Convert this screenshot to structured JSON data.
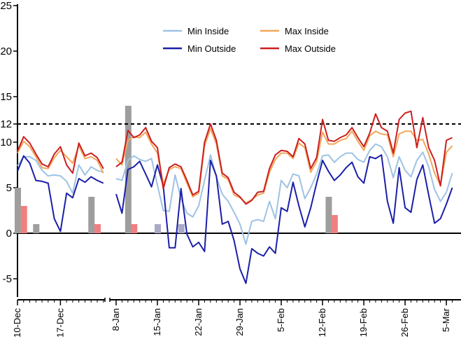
{
  "chart_data": {
    "type": "line",
    "yaxis": {
      "min": -7,
      "max": 25,
      "ticks": [
        -5,
        0,
        5,
        10,
        12,
        15,
        20,
        25
      ]
    },
    "reference_line": 12,
    "x_tick_labels": [
      "10-Dec",
      "17-Dec",
      "8-Jan",
      "15-Jan",
      "22-Jan",
      "29-Jan",
      "5-Feb",
      "12-Feb",
      "19-Feb",
      "26-Feb",
      "5-Mar"
    ],
    "legend": [
      "Min Inside",
      "Max Inside",
      "Min Outside",
      "Max Outside"
    ],
    "segments": [
      {
        "dates": [
          "10-Dec",
          "11-Dec",
          "12-Dec",
          "13-Dec",
          "14-Dec",
          "15-Dec",
          "16-Dec",
          "17-Dec",
          "18-Dec",
          "19-Dec",
          "20-Dec",
          "21-Dec",
          "22-Dec",
          "23-Dec",
          "24-Dec"
        ],
        "series": [
          {
            "name": "Min Inside",
            "values": [
              7.4,
              8.4,
              8.4,
              8.0,
              6.9,
              6.3,
              6.4,
              6.3,
              5.7,
              4.4,
              7.5,
              6.4,
              7.3,
              6.9,
              6.7
            ]
          },
          {
            "name": "Max Inside",
            "values": [
              8.8,
              10.1,
              9.5,
              8.4,
              7.2,
              7.1,
              8.3,
              9.1,
              8.4,
              7.7,
              9.6,
              8.2,
              8.4,
              8.0,
              6.6
            ]
          },
          {
            "name": "Min Outside",
            "values": [
              6.8,
              8.5,
              7.7,
              5.8,
              5.7,
              5.5,
              1.6,
              0.2,
              4.4,
              3.9,
              6.0,
              5.6,
              6.2,
              5.8,
              5.5
            ]
          },
          {
            "name": "Max Outside",
            "values": [
              9.0,
              10.6,
              9.9,
              8.7,
              7.6,
              7.3,
              8.7,
              9.5,
              7.5,
              6.6,
              9.9,
              8.5,
              8.8,
              8.3,
              7.1
            ]
          }
        ]
      },
      {
        "dates": [
          "8-Jan",
          "9-Jan",
          "10-Jan",
          "11-Jan",
          "12-Jan",
          "13-Jan",
          "14-Jan",
          "15-Jan",
          "16-Jan",
          "17-Jan",
          "18-Jan",
          "19-Jan",
          "20-Jan",
          "21-Jan",
          "22-Jan",
          "23-Jan",
          "24-Jan",
          "25-Jan",
          "26-Jan",
          "27-Jan",
          "28-Jan",
          "29-Jan",
          "30-Jan",
          "31-Jan",
          "1-Feb",
          "2-Feb",
          "3-Feb",
          "4-Feb",
          "5-Feb",
          "6-Feb",
          "7-Feb",
          "8-Feb",
          "9-Feb",
          "10-Feb",
          "11-Feb",
          "12-Feb",
          "13-Feb",
          "14-Feb",
          "15-Feb",
          "16-Feb",
          "17-Feb",
          "18-Feb",
          "19-Feb",
          "20-Feb",
          "21-Feb",
          "22-Feb",
          "23-Feb",
          "24-Feb",
          "25-Feb",
          "26-Feb",
          "27-Feb",
          "28-Feb",
          "1-Mar",
          "2-Mar",
          "3-Mar",
          "4-Mar",
          "5-Mar",
          "6-Mar"
        ],
        "series": [
          {
            "name": "Min Inside",
            "values": [
              6.0,
              5.8,
              8.0,
              8.5,
              8.1,
              7.9,
              8.2,
              5.3,
              2.5,
              2.4,
              6.4,
              3.8,
              2.2,
              1.8,
              3.0,
              5.8,
              8.6,
              6.2,
              4.3,
              3.5,
              2.3,
              1.0,
              -1.2,
              1.3,
              1.5,
              1.3,
              3.5,
              1.6,
              5.8,
              5.0,
              6.5,
              6.3,
              3.8,
              5.0,
              6.5,
              8.5,
              8.6,
              7.8,
              8.4,
              8.8,
              8.8,
              8.1,
              7.8,
              9.1,
              9.8,
              9.5,
              8.4,
              6.1,
              8.4,
              6.9,
              6.2,
              8.0,
              8.9,
              7.3,
              4.8,
              3.5,
              4.5,
              6.6
            ]
          },
          {
            "name": "Max Inside",
            "values": [
              8.2,
              7.5,
              10.2,
              10.6,
              10.5,
              11.1,
              9.8,
              8.8,
              5.4,
              7.0,
              7.3,
              7.1,
              5.5,
              4.0,
              4.4,
              9.6,
              11.5,
              9.8,
              6.3,
              5.9,
              4.2,
              3.9,
              3.3,
              3.7,
              4.2,
              4.4,
              6.7,
              8.1,
              8.8,
              8.8,
              8.2,
              9.9,
              9.4,
              6.7,
              7.9,
              11.1,
              9.8,
              9.8,
              10.2,
              10.4,
              11.2,
              10.1,
              9.1,
              10.7,
              11.2,
              10.9,
              10.8,
              8.4,
              10.9,
              11.2,
              11.2,
              10.2,
              10.3,
              8.7,
              6.6,
              5.3,
              8.9,
              9.6
            ]
          },
          {
            "name": "Min Outside",
            "values": [
              4.3,
              2.2,
              7.0,
              7.3,
              7.9,
              6.5,
              5.1,
              7.5,
              5.2,
              -1.6,
              -1.6,
              4.9,
              -0.1,
              -1.5,
              -1.0,
              -2.0,
              8.0,
              6.3,
              1.0,
              1.3,
              -0.8,
              -3.9,
              -5.5,
              -1.7,
              -2.2,
              -2.5,
              -1.5,
              -2.2,
              2.8,
              2.4,
              5.6,
              3.0,
              0.7,
              2.8,
              5.5,
              8.0,
              6.8,
              5.8,
              6.4,
              7.2,
              7.8,
              6.2,
              5.5,
              8.4,
              8.2,
              8.6,
              3.5,
              1.1,
              7.2,
              2.8,
              2.3,
              5.9,
              7.5,
              4.2,
              1.1,
              1.6,
              3.2,
              5.0
            ]
          },
          {
            "name": "Max Outside",
            "values": [
              7.3,
              7.8,
              11.3,
              10.5,
              10.8,
              11.6,
              10.1,
              9.4,
              4.9,
              7.2,
              7.6,
              7.3,
              5.8,
              4.2,
              4.6,
              10.0,
              12.0,
              10.2,
              6.6,
              6.1,
              4.5,
              4.0,
              3.2,
              3.6,
              4.5,
              4.6,
              7.1,
              8.6,
              9.1,
              9.0,
              8.4,
              10.4,
              9.8,
              7.1,
              8.3,
              12.5,
              10.2,
              10.1,
              10.5,
              10.8,
              11.6,
              10.5,
              9.5,
              11.0,
              13.1,
              11.6,
              11.2,
              8.8,
              12.5,
              13.2,
              13.4,
              9.4,
              12.7,
              9.4,
              8.0,
              5.2,
              10.2,
              10.5
            ]
          }
        ]
      }
    ],
    "bars": [
      {
        "date": "10-Dec",
        "series": "Inside",
        "value": 5
      },
      {
        "date": "11-Dec",
        "series": "Outside",
        "value": 3
      },
      {
        "date": "13-Dec",
        "series": "Inside",
        "value": 1
      },
      {
        "date": "22-Dec",
        "series": "Inside",
        "value": 4
      },
      {
        "date": "23-Dec",
        "series": "Outside",
        "value": 1
      },
      {
        "date": "10-Jan",
        "series": "Inside",
        "value": 14
      },
      {
        "date": "11-Jan",
        "series": "Outside",
        "value": 1
      },
      {
        "date": "15-Jan",
        "series": "Inside",
        "value": 1
      },
      {
        "date": "19-Jan",
        "series": "Inside",
        "value": 1
      },
      {
        "date": "13-Feb",
        "series": "Inside",
        "value": 4
      },
      {
        "date": "14-Feb",
        "series": "Outside",
        "value": 2
      }
    ],
    "colors": {
      "min_inside": "#9ec3e3",
      "max_inside": "#f2a65a",
      "min_outside": "#1b1fa8",
      "max_outside": "#cc1f1f",
      "bar_inside": "#9e9e9e",
      "bar_inside_alt": "#a9a9c8",
      "bar_outside": "#f08080",
      "reference_line": "#000000"
    }
  }
}
